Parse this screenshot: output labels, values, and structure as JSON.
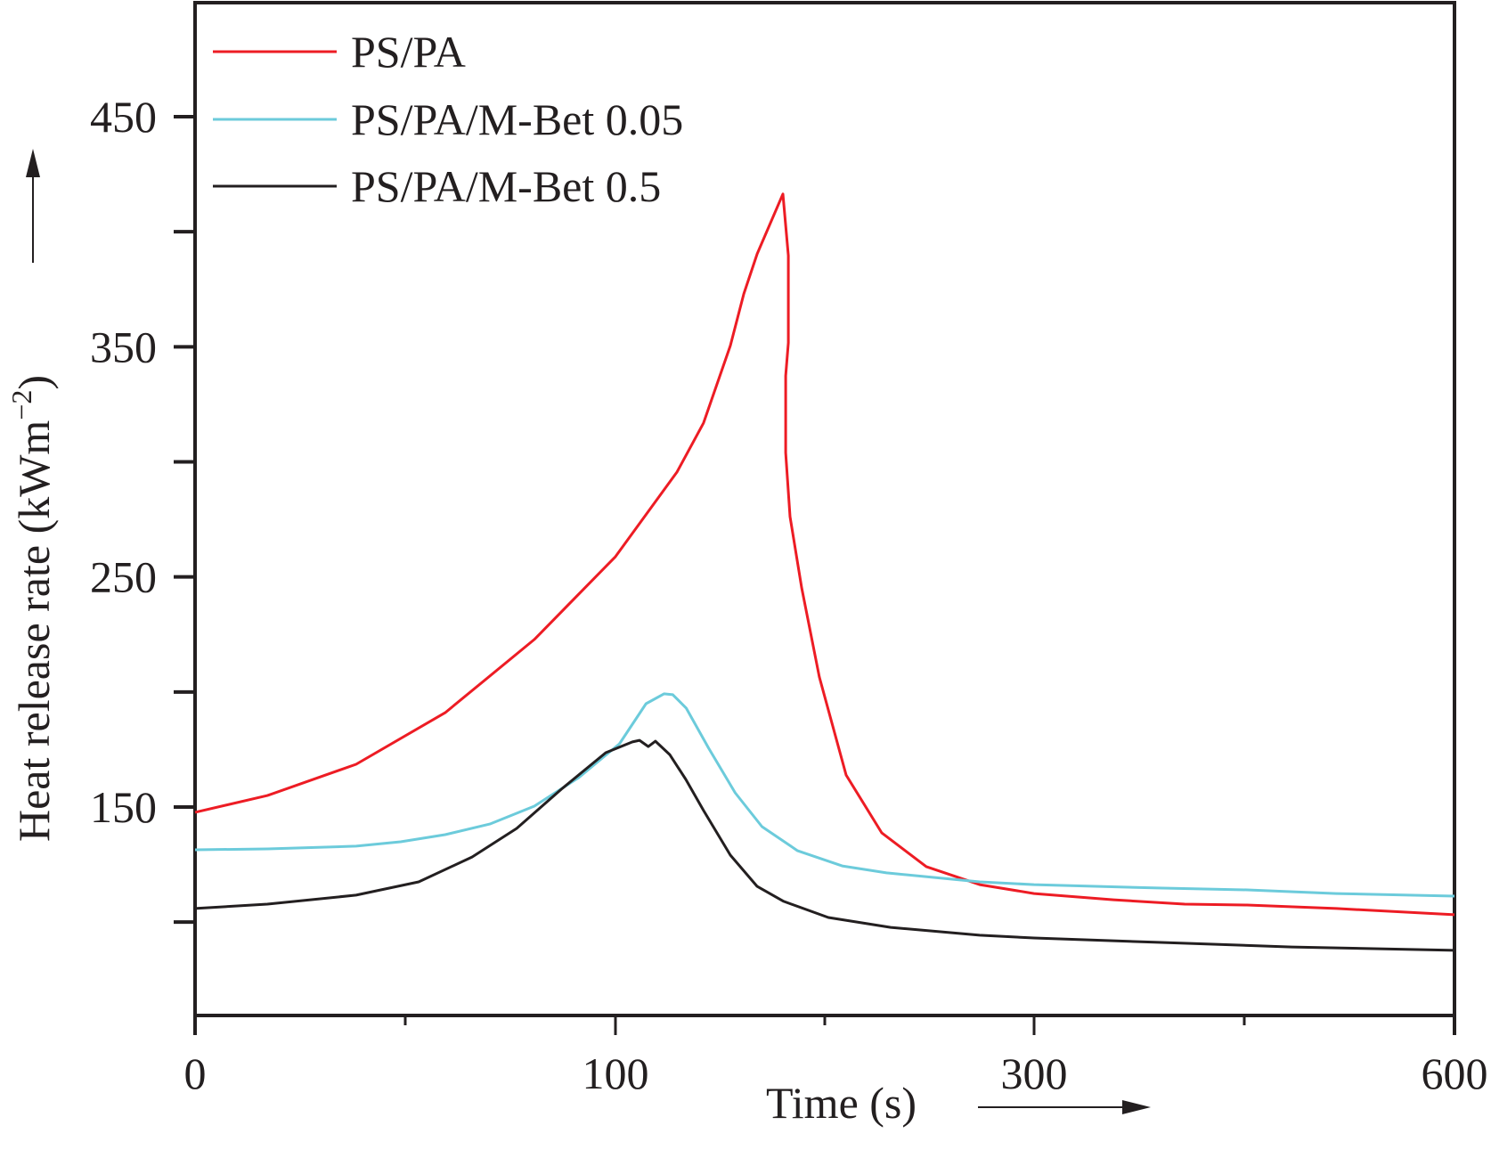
{
  "chart_data": {
    "type": "line",
    "title": "",
    "xlabel": "Time (s)",
    "ylabel": "Heat release rate (kWm−2)",
    "ylabel_main": "Heat release rate (kWm",
    "ylabel_sup": "−2",
    "ylabel_close": ")",
    "x_scale": "piecewise-linear between labeled ticks",
    "xlim": [
      0,
      600
    ],
    "ylim": [
      60,
      500
    ],
    "x_ticks": [
      0,
      100,
      300,
      600
    ],
    "x_tick_labels": [
      "0",
      "100",
      "300",
      "600"
    ],
    "x_minor_ticks": [
      50,
      200,
      450
    ],
    "y_ticks": [
      100,
      150,
      200,
      250,
      300,
      350,
      400,
      450
    ],
    "y_tick_labels": [
      {
        "value": 150,
        "label": "150"
      },
      {
        "value": 250,
        "label": "250"
      },
      {
        "value": 350,
        "label": "350"
      },
      {
        "value": 450,
        "label": "450"
      }
    ],
    "grid": false,
    "legend_position": "top-left",
    "series": [
      {
        "name": "PS/PA",
        "color": "#ed1c24",
        "points": [
          [
            0,
            147.7
          ],
          [
            17.2,
            155
          ],
          [
            38.3,
            168.6
          ],
          [
            59.5,
            191
          ],
          [
            80.7,
            222.8
          ],
          [
            100,
            258.8
          ],
          [
            129.4,
            295.6
          ],
          [
            142.1,
            316.9
          ],
          [
            154.9,
            350.5
          ],
          [
            161.3,
            373
          ],
          [
            167.7,
            390.4
          ],
          [
            180,
            416.4
          ],
          [
            182.6,
            389.6
          ],
          [
            182.6,
            351.7
          ],
          [
            181.3,
            337.4
          ],
          [
            181.3,
            304
          ],
          [
            183.4,
            276.2
          ],
          [
            189,
            245.2
          ],
          [
            197.4,
            206.5
          ],
          [
            210.2,
            163.9
          ],
          [
            227.2,
            138.8
          ],
          [
            248.5,
            124.1
          ],
          [
            274,
            116.3
          ],
          [
            300,
            112.4
          ],
          [
            356.6,
            109.7
          ],
          [
            407.5,
            107.8
          ],
          [
            452,
            107.4
          ],
          [
            515.6,
            105.9
          ],
          [
            600,
            103.2
          ]
        ]
      },
      {
        "name": "PS/PA/M-Bet 0.05",
        "color": "#6ccbdb",
        "points": [
          [
            0,
            131.4
          ],
          [
            17.2,
            131.8
          ],
          [
            38.3,
            133
          ],
          [
            48.9,
            134.9
          ],
          [
            59.5,
            138
          ],
          [
            70.1,
            142.6
          ],
          [
            80.7,
            150.4
          ],
          [
            91.3,
            162.8
          ],
          [
            101.9,
            177.5
          ],
          [
            114.6,
            194.9
          ],
          [
            123.2,
            199.2
          ],
          [
            127.4,
            198.8
          ],
          [
            133.8,
            193
          ],
          [
            144.5,
            175.6
          ],
          [
            157.2,
            156.2
          ],
          [
            170,
            141.5
          ],
          [
            187,
            131
          ],
          [
            208.3,
            124.4
          ],
          [
            229.5,
            121.4
          ],
          [
            274,
            117.5
          ],
          [
            300,
            116.3
          ],
          [
            388.4,
            114.8
          ],
          [
            452,
            114
          ],
          [
            515.6,
            112.4
          ],
          [
            600,
            111.3
          ]
        ]
      },
      {
        "name": "PS/PA/M-Bet 0.5",
        "color": "#231f20",
        "points": [
          [
            0,
            105.9
          ],
          [
            17.2,
            107.8
          ],
          [
            38.3,
            111.7
          ],
          [
            53.2,
            117.5
          ],
          [
            65.9,
            128.3
          ],
          [
            76.5,
            140.7
          ],
          [
            87.1,
            157.7
          ],
          [
            97.7,
            173.6
          ],
          [
            108.1,
            178.3
          ],
          [
            111.5,
            179
          ],
          [
            115.7,
            176.3
          ],
          [
            119.1,
            178.6
          ],
          [
            125.9,
            172.8
          ],
          [
            133.6,
            162
          ],
          [
            142.1,
            148.5
          ],
          [
            154.9,
            129.1
          ],
          [
            167.7,
            115.5
          ],
          [
            180.4,
            109
          ],
          [
            201.7,
            102
          ],
          [
            231.5,
            97.7
          ],
          [
            274,
            94.3
          ],
          [
            300,
            93.1
          ],
          [
            388.4,
            91.2
          ],
          [
            483.8,
            89.2
          ],
          [
            600,
            87.7
          ]
        ]
      }
    ]
  }
}
